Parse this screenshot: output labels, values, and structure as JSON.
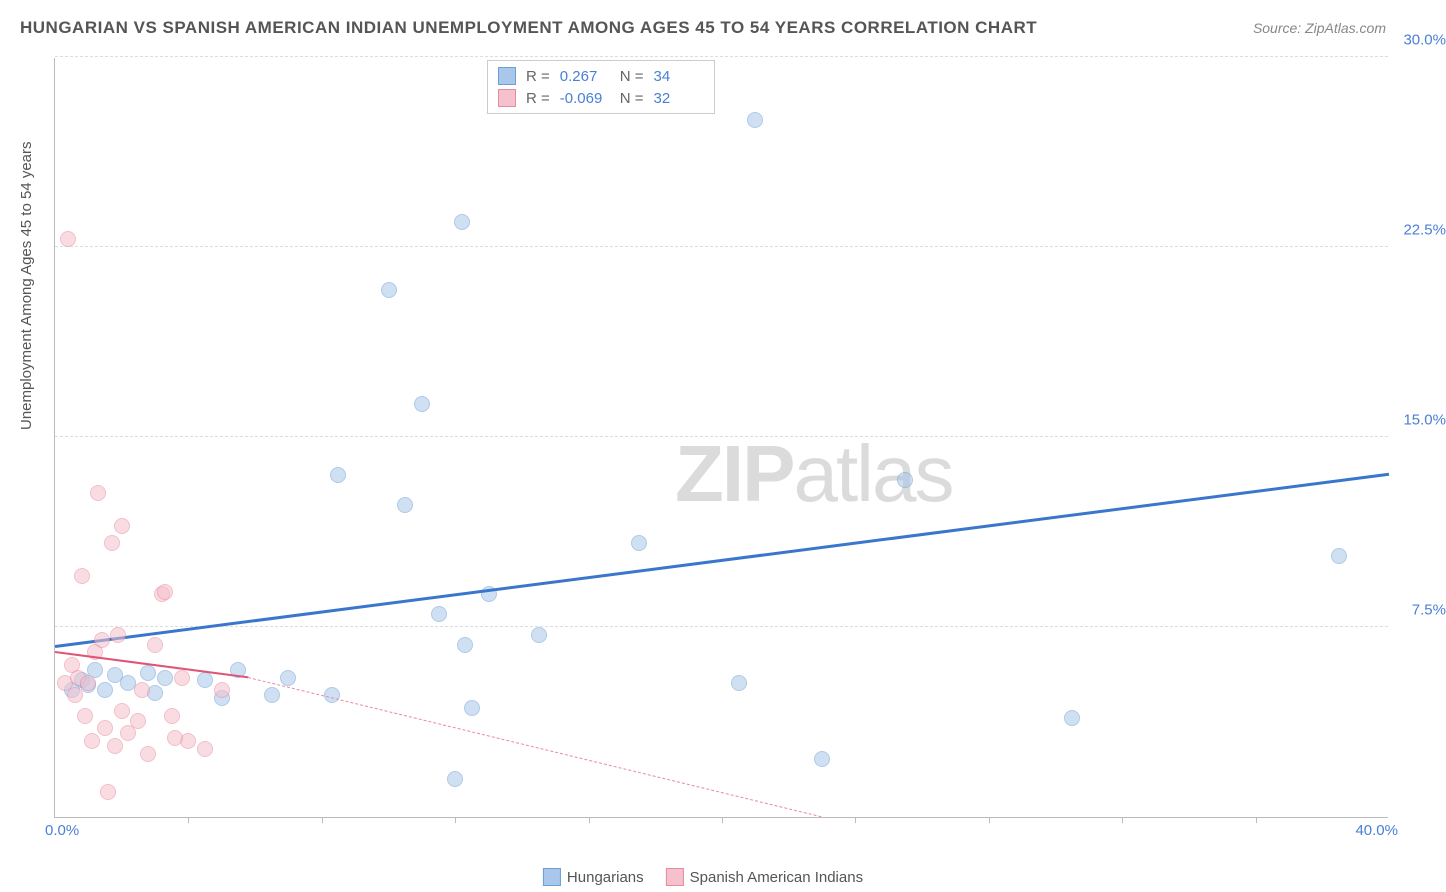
{
  "title": "HUNGARIAN VS SPANISH AMERICAN INDIAN UNEMPLOYMENT AMONG AGES 45 TO 54 YEARS CORRELATION CHART",
  "source": "Source: ZipAtlas.com",
  "y_axis_label": "Unemployment Among Ages 45 to 54 years",
  "watermark_bold": "ZIP",
  "watermark_rest": "atlas",
  "chart": {
    "type": "scatter",
    "xlim": [
      0,
      40
    ],
    "ylim": [
      0,
      30
    ],
    "x_origin_label": "0.0%",
    "x_max_label": "40.0%",
    "y_ticks": [
      7.5,
      15.0,
      22.5,
      30.0
    ],
    "y_tick_labels": [
      "7.5%",
      "15.0%",
      "22.5%",
      "30.0%"
    ],
    "x_tick_positions": [
      4,
      8,
      12,
      16,
      20,
      24,
      28,
      32,
      36
    ],
    "grid_color": "#dddddd",
    "background_color": "#ffffff",
    "axis_color": "#bbbbbb",
    "tick_label_color": "#4a7fd6",
    "marker_radius": 8,
    "marker_opacity": 0.55
  },
  "series": [
    {
      "name": "Hungarians",
      "color_fill": "#a9c7ea",
      "color_stroke": "#6b9fd8",
      "r_value": "0.267",
      "n_value": "34",
      "trend": {
        "x1": 0,
        "y1": 6.7,
        "x2": 40,
        "y2": 13.5,
        "solid": true,
        "color": "#3a76cc",
        "width": 2.5
      },
      "trend_extrapolate": null,
      "points": [
        [
          0.5,
          5.0
        ],
        [
          0.8,
          5.4
        ],
        [
          1.0,
          5.2
        ],
        [
          1.2,
          5.8
        ],
        [
          1.5,
          5.0
        ],
        [
          1.8,
          5.6
        ],
        [
          2.2,
          5.3
        ],
        [
          2.8,
          5.7
        ],
        [
          3.0,
          4.9
        ],
        [
          3.3,
          5.5
        ],
        [
          4.5,
          5.4
        ],
        [
          5.0,
          4.7
        ],
        [
          5.5,
          5.8
        ],
        [
          6.5,
          4.8
        ],
        [
          7.0,
          5.5
        ],
        [
          8.3,
          4.8
        ],
        [
          8.5,
          13.5
        ],
        [
          10.0,
          20.8
        ],
        [
          10.5,
          12.3
        ],
        [
          11.0,
          16.3
        ],
        [
          11.5,
          8.0
        ],
        [
          12.3,
          6.8
        ],
        [
          12.2,
          23.5
        ],
        [
          12.5,
          4.3
        ],
        [
          13.0,
          8.8
        ],
        [
          14.5,
          7.2
        ],
        [
          17.5,
          10.8
        ],
        [
          20.5,
          5.3
        ],
        [
          21.0,
          27.5
        ],
        [
          23.0,
          2.3
        ],
        [
          25.5,
          13.3
        ],
        [
          30.5,
          3.9
        ],
        [
          38.5,
          10.3
        ],
        [
          12.0,
          1.5
        ]
      ]
    },
    {
      "name": "Spanish American Indians",
      "color_fill": "#f5c1cc",
      "color_stroke": "#e88aa0",
      "r_value": "-0.069",
      "n_value": "32",
      "trend": {
        "x1": 0,
        "y1": 6.5,
        "x2": 5.8,
        "y2": 5.5,
        "solid": true,
        "color": "#e05577",
        "width": 1.8
      },
      "trend_extrapolate": {
        "x1": 5.8,
        "y1": 5.5,
        "x2": 23,
        "y2": 0,
        "color": "#e88aa0",
        "width": 1.2
      },
      "points": [
        [
          0.3,
          5.3
        ],
        [
          0.5,
          6.0
        ],
        [
          0.6,
          4.8
        ],
        [
          0.7,
          5.5
        ],
        [
          0.8,
          9.5
        ],
        [
          0.9,
          4.0
        ],
        [
          1.0,
          5.3
        ],
        [
          1.1,
          3.0
        ],
        [
          1.2,
          6.5
        ],
        [
          1.3,
          12.8
        ],
        [
          1.4,
          7.0
        ],
        [
          1.5,
          3.5
        ],
        [
          1.7,
          10.8
        ],
        [
          1.8,
          2.8
        ],
        [
          1.9,
          7.2
        ],
        [
          2.0,
          11.5
        ],
        [
          2.2,
          3.3
        ],
        [
          0.4,
          22.8
        ],
        [
          2.5,
          3.8
        ],
        [
          2.6,
          5.0
        ],
        [
          2.8,
          2.5
        ],
        [
          3.0,
          6.8
        ],
        [
          3.2,
          8.8
        ],
        [
          3.3,
          8.9
        ],
        [
          3.5,
          4.0
        ],
        [
          3.8,
          5.5
        ],
        [
          4.0,
          3.0
        ],
        [
          4.5,
          2.7
        ],
        [
          5.0,
          5.0
        ],
        [
          1.6,
          1.0
        ],
        [
          3.6,
          3.1
        ],
        [
          2.0,
          4.2
        ]
      ]
    }
  ],
  "stats_box": {
    "r_label": "R =",
    "n_label": "N ="
  },
  "legend": {
    "items": [
      "Hungarians",
      "Spanish American Indians"
    ]
  }
}
